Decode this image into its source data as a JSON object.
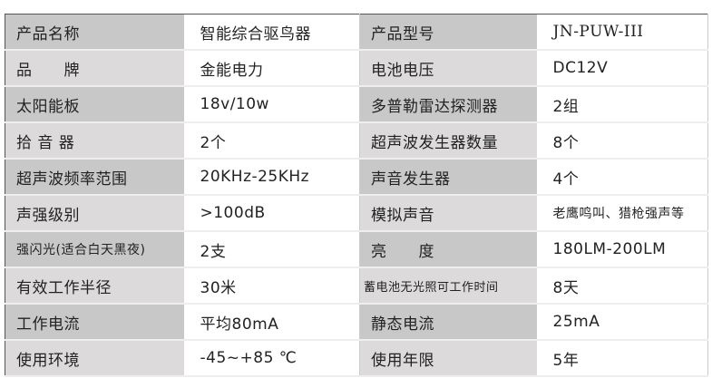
{
  "rows": [
    {
      "label1": "产品名称",
      "value1": "智能综合驱鸟器",
      "label2": "产品型号",
      "value2": "JN-PUW-III"
    },
    {
      "label1": "品　　牌",
      "value1": "金能电力",
      "label2": "电池电压",
      "value2": "DC12V"
    },
    {
      "label1": "太阳能板",
      "value1": "18v/10w",
      "label2": "多普勒雷达探测器",
      "value2": "2组"
    },
    {
      "label1": "拾 音 器",
      "value1": "2个",
      "label2": "超声波发生器数量",
      "value2": "8个"
    },
    {
      "label1": "超声波频率范围",
      "value1": "20KHz-25KHz",
      "label2": "声音发生器",
      "value2": "4个"
    },
    {
      "label1": "声强级别",
      "value1": ">100dB",
      "label2": "模拟声音",
      "value2": "老鹰鸣叫、猎枪强声等"
    },
    {
      "label1": "强闪光(适合白天黑夜)",
      "value1": "2支",
      "label2": "亮　　度",
      "value2": "180LM-200LM"
    },
    {
      "label1": "有效工作半径",
      "value1": "30米",
      "label2": "蓄电池无光照可工作时间",
      "value2": "8天"
    },
    {
      "label1": "工作电流",
      "value1": "平均80mA",
      "label2": "静态电流",
      "value2": "25mA"
    },
    {
      "label1": "使用环境",
      "value1": "-45~+85 ℃",
      "label2": "使用年限",
      "value2": "5年"
    }
  ]
}
